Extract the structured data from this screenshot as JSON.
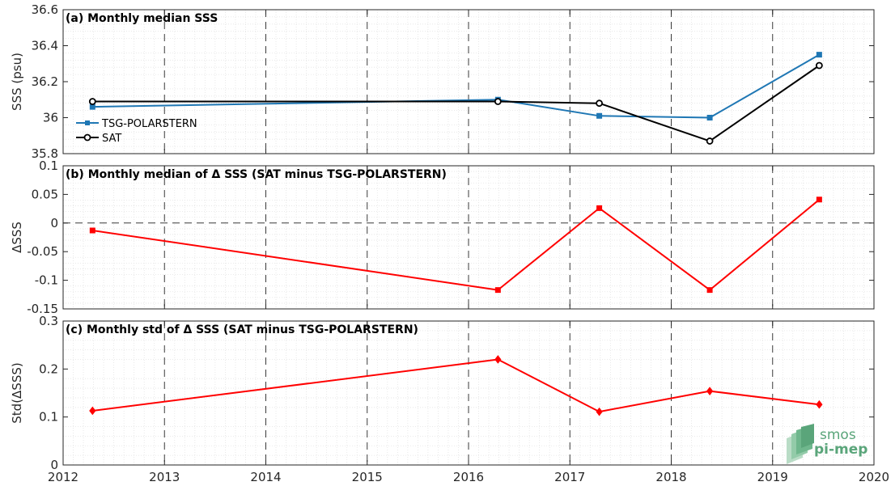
{
  "colors": {
    "tsg": "#1f77b4",
    "sat": "#000000",
    "delta": "#ff0000",
    "logo": "#5aa57a"
  },
  "logo": {
    "line1": "smos",
    "line2": "pi-mep"
  },
  "chart_data": [
    {
      "type": "line",
      "title": "(a) Monthly median SSS",
      "xlabel": "",
      "ylabel": "SSS (psu)",
      "xlim": [
        2012,
        2020
      ],
      "ylim": [
        35.8,
        36.6
      ],
      "xticks": [
        "2012",
        "2013",
        "2014",
        "2015",
        "2016",
        "2017",
        "2018",
        "2019",
        "2020"
      ],
      "yticks": [
        "35.8",
        "36",
        "36.2",
        "36.4",
        "36.6"
      ],
      "legend": "left",
      "x": [
        2012.29,
        2016.29,
        2017.29,
        2018.38,
        2019.46
      ],
      "series": [
        {
          "name": "TSG-POLARSTERN",
          "values": [
            36.06,
            36.1,
            36.01,
            36.0,
            36.35
          ],
          "marker": "square"
        },
        {
          "name": "SAT",
          "values": [
            36.09,
            36.09,
            36.08,
            35.87,
            36.29
          ],
          "marker": "circle"
        }
      ]
    },
    {
      "type": "line",
      "title": "(b) Monthly median of Δ SSS (SAT minus TSG-POLARSTERN)",
      "xlabel": "",
      "ylabel": "ΔSSS",
      "xlim": [
        2012,
        2020
      ],
      "ylim": [
        -0.15,
        0.1
      ],
      "xticks": [
        "2012",
        "2013",
        "2014",
        "2015",
        "2016",
        "2017",
        "2018",
        "2019",
        "2020"
      ],
      "yticks": [
        "-0.15",
        "-0.1",
        "-0.05",
        "0",
        "0.05",
        "0.1"
      ],
      "x": [
        2012.29,
        2016.29,
        2017.29,
        2018.38,
        2019.46
      ],
      "series": [
        {
          "name": "",
          "values": [
            -0.013,
            -0.117,
            0.026,
            -0.117,
            0.041
          ],
          "marker": "square"
        }
      ]
    },
    {
      "type": "line",
      "title": "(c) Monthly std of Δ SSS (SAT minus TSG-POLARSTERN)",
      "xlabel": "",
      "ylabel": "Std(ΔSSS)",
      "xlim": [
        2012,
        2020
      ],
      "ylim": [
        0,
        0.3
      ],
      "xticks": [
        "2012",
        "2013",
        "2014",
        "2015",
        "2016",
        "2017",
        "2018",
        "2019",
        "2020"
      ],
      "yticks": [
        "0",
        "0.1",
        "0.2",
        "0.3"
      ],
      "x": [
        2012.29,
        2016.29,
        2017.29,
        2018.38,
        2019.46
      ],
      "series": [
        {
          "name": "",
          "values": [
            0.113,
            0.22,
            0.111,
            0.154,
            0.126
          ],
          "marker": "diamond"
        }
      ]
    }
  ]
}
